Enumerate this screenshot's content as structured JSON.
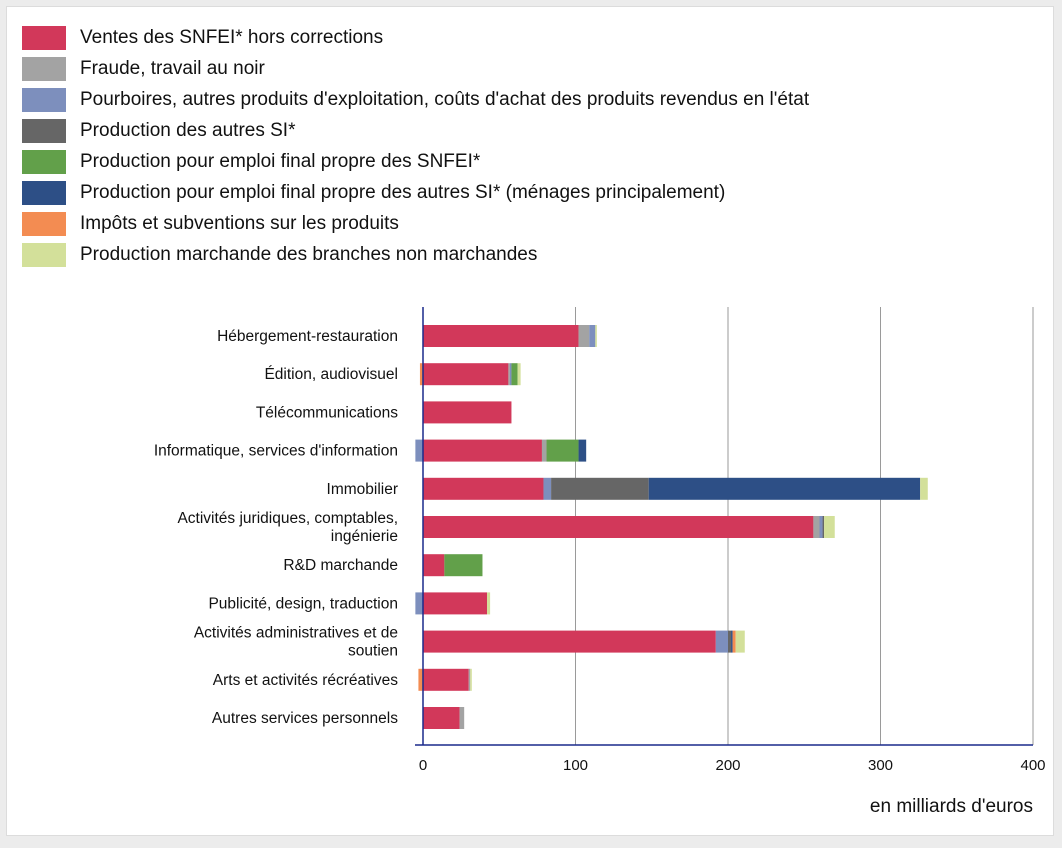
{
  "chart_data": {
    "type": "bar",
    "orientation": "horizontal",
    "stacked": true,
    "xlabel": "en milliards d'euros",
    "xlim": [
      -5,
      400
    ],
    "xticks": [
      0,
      100,
      200,
      300,
      400
    ],
    "grid": true,
    "legend_position": "top-left",
    "categories": [
      "Hébergement-restauration",
      "Édition, audiovisuel",
      "Télécommunications",
      "Informatique, services d'information",
      "Immobilier",
      "Activités juridiques, comptables, ingénierie",
      "R&D marchande",
      "Publicité, design, traduction",
      "Activités administratives et de soutien",
      "Arts et activités récréatives",
      "Autres services personnels"
    ],
    "category_lines": [
      [
        "Hébergement-restauration"
      ],
      [
        "Édition, audiovisuel"
      ],
      [
        "Télécommunications"
      ],
      [
        "Informatique, services d'information"
      ],
      [
        "Immobilier"
      ],
      [
        "Activités juridiques, comptables,",
        "ingénierie"
      ],
      [
        "R&D marchande"
      ],
      [
        "Publicité, design, traduction"
      ],
      [
        "Activités administratives et de",
        "soutien"
      ],
      [
        "Arts et activités récréatives"
      ],
      [
        "Autres services personnels"
      ]
    ],
    "series": [
      {
        "name": "Ventes des SNFEI* hors corrections",
        "color": "#d2385a",
        "values": [
          102,
          56,
          58,
          78,
          79,
          256,
          14,
          42,
          192,
          30,
          24
        ]
      },
      {
        "name": "Fraude, travail au noir",
        "color": "#a3a3a3",
        "values": [
          7,
          1,
          0,
          3,
          0,
          4,
          0,
          0,
          0,
          1,
          3
        ]
      },
      {
        "name": "Pourboires, autres produits d'exploitation, coûts d'achat des produits revendus en l'état",
        "color": "#7d8fbd",
        "values": [
          4,
          1,
          0,
          -5,
          5,
          2,
          0,
          -5,
          8,
          0,
          0
        ]
      },
      {
        "name": "Production des autres SI*",
        "color": "#666666",
        "values": [
          0,
          0,
          0,
          0,
          64,
          1,
          0,
          0,
          2,
          0,
          0
        ]
      },
      {
        "name": "Production pour emploi final propre des SNFEI*",
        "color": "#62a04a",
        "values": [
          0,
          4,
          0,
          21,
          0,
          0,
          25,
          0,
          0,
          0,
          0
        ]
      },
      {
        "name": "Production pour emploi final propre des autres SI* (ménages principalement)",
        "color": "#2d4f86",
        "values": [
          0,
          0,
          0,
          5,
          178,
          0,
          0,
          0,
          1,
          0,
          0
        ]
      },
      {
        "name": "Impôts et subventions sur les produits",
        "color": "#f38c52",
        "values": [
          0,
          -2,
          0,
          0,
          0,
          0,
          0,
          0,
          2,
          -3,
          0
        ]
      },
      {
        "name": "Production marchande des branches non marchandes",
        "color": "#d3e09a",
        "values": [
          1,
          2,
          0,
          0,
          5,
          7,
          0,
          2,
          6,
          1,
          0
        ]
      }
    ]
  }
}
